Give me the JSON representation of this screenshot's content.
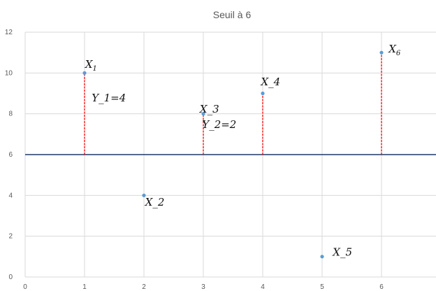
{
  "chart_data": {
    "type": "scatter",
    "title": "Seuil à 6",
    "xlabel": "",
    "ylabel": "",
    "xlim": [
      0,
      7
    ],
    "ylim": [
      0,
      12
    ],
    "x_ticks": [
      0,
      1,
      2,
      3,
      4,
      5,
      6
    ],
    "y_ticks": [
      0,
      2,
      4,
      6,
      8,
      10,
      12
    ],
    "grid": true,
    "legend": "none",
    "threshold": 6,
    "colors": {
      "points": "#5b9bd5",
      "threshold_line": "#1f3864",
      "excess_segments": "#ff0000",
      "grid": "#d9d9d9"
    },
    "points": [
      {
        "x": 1,
        "y": 10
      },
      {
        "x": 2,
        "y": 4
      },
      {
        "x": 3,
        "y": 8
      },
      {
        "x": 4,
        "y": 9
      },
      {
        "x": 5,
        "y": 1
      },
      {
        "x": 6,
        "y": 11
      }
    ],
    "excess_segments": [
      {
        "x": 1,
        "from": 6,
        "to": 10
      },
      {
        "x": 3,
        "from": 6,
        "to": 8
      },
      {
        "x": 4,
        "from": 6,
        "to": 9
      },
      {
        "x": 6,
        "from": 6,
        "to": 11
      }
    ],
    "annotations": [
      {
        "text": "X",
        "sub": "1",
        "x": 1.01,
        "y": 10.25
      },
      {
        "text": "Y_1=4",
        "x": 1.12,
        "y": 8.6
      },
      {
        "text": "X_2",
        "x": 2.02,
        "y": 3.5
      },
      {
        "text": "X_3",
        "x": 2.94,
        "y": 8.05
      },
      {
        "text": "Y_2=2",
        "x": 2.98,
        "y": 7.3
      },
      {
        "text": "X_4",
        "x": 3.97,
        "y": 9.4
      },
      {
        "text": "X_5",
        "x": 5.18,
        "y": 1.05
      },
      {
        "text": "X",
        "sub": "6",
        "x": 6.12,
        "y": 11.0
      }
    ]
  }
}
